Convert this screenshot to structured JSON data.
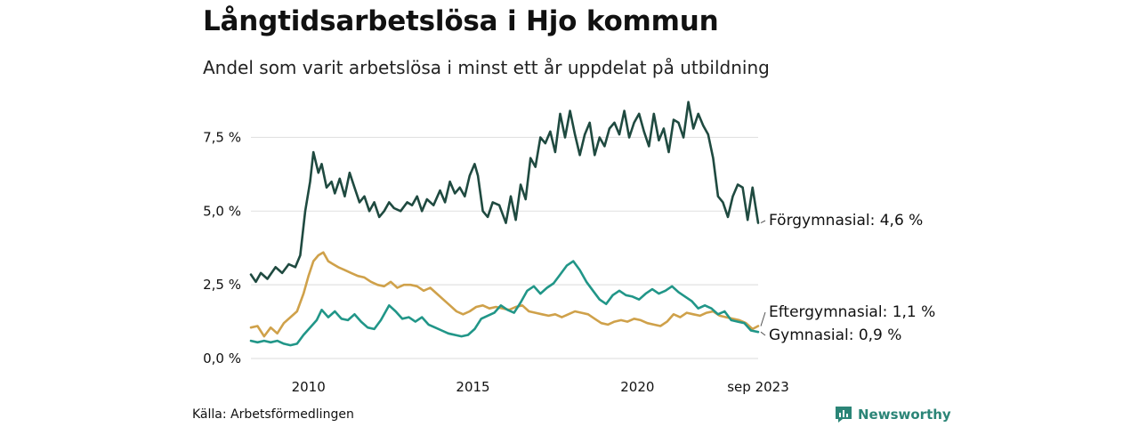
{
  "header": {
    "title": "Långtidsarbetslösa i Hjo kommun",
    "subtitle": "Andel som varit arbetslösa i minst ett år uppdelat på utbildning"
  },
  "footer": {
    "source": "Källa: Arbetsförmedlingen",
    "brand": "Newsworthy"
  },
  "colors": {
    "forgymnasial": "#1f4a40",
    "eftergymnasial": "#cfa14a",
    "gymnasial": "#219688",
    "grid": "#e2e2e2",
    "brand": "#2b8577"
  },
  "icons": {
    "brand": "bar-chart-icon"
  },
  "chart_data": {
    "type": "line",
    "title": "Långtidsarbetslösa i Hjo kommun",
    "subtitle": "Andel som varit arbetslösa i minst ett år uppdelat på utbildning",
    "xlabel": "",
    "ylabel": "",
    "xlim": [
      2008.25,
      2023.67
    ],
    "ylim": [
      0,
      8.6
    ],
    "y_ticks": [
      0,
      2.5,
      5,
      7.5
    ],
    "y_tick_labels": [
      "0,0 %",
      "2,5 %",
      "5,0 %",
      "7,5 %"
    ],
    "x_ticks": [
      2010,
      2015,
      2020,
      2023.67
    ],
    "x_tick_labels": [
      "2010",
      "2015",
      "2020",
      "sep 2023"
    ],
    "grid": true,
    "series": [
      {
        "name": "Förgymnasial",
        "end_label": "Förgymnasial: 4,6 %",
        "color": "#1f4a40",
        "points": [
          [
            2008.25,
            2.85
          ],
          [
            2008.4,
            2.6
          ],
          [
            2008.55,
            2.9
          ],
          [
            2008.75,
            2.7
          ],
          [
            2009.0,
            3.1
          ],
          [
            2009.2,
            2.9
          ],
          [
            2009.4,
            3.2
          ],
          [
            2009.6,
            3.1
          ],
          [
            2009.75,
            3.5
          ],
          [
            2009.9,
            5.0
          ],
          [
            2010.05,
            6.0
          ],
          [
            2010.15,
            7.0
          ],
          [
            2010.3,
            6.3
          ],
          [
            2010.4,
            6.6
          ],
          [
            2010.55,
            5.8
          ],
          [
            2010.7,
            6.0
          ],
          [
            2010.8,
            5.6
          ],
          [
            2010.95,
            6.1
          ],
          [
            2011.1,
            5.5
          ],
          [
            2011.25,
            6.3
          ],
          [
            2011.4,
            5.8
          ],
          [
            2011.55,
            5.3
          ],
          [
            2011.7,
            5.5
          ],
          [
            2011.85,
            5.0
          ],
          [
            2012.0,
            5.3
          ],
          [
            2012.15,
            4.8
          ],
          [
            2012.3,
            5.0
          ],
          [
            2012.45,
            5.3
          ],
          [
            2012.6,
            5.1
          ],
          [
            2012.8,
            5.0
          ],
          [
            2013.0,
            5.3
          ],
          [
            2013.15,
            5.2
          ],
          [
            2013.3,
            5.5
          ],
          [
            2013.45,
            5.0
          ],
          [
            2013.6,
            5.4
          ],
          [
            2013.8,
            5.2
          ],
          [
            2014.0,
            5.7
          ],
          [
            2014.15,
            5.3
          ],
          [
            2014.3,
            6.0
          ],
          [
            2014.45,
            5.6
          ],
          [
            2014.6,
            5.8
          ],
          [
            2014.75,
            5.5
          ],
          [
            2014.9,
            6.2
          ],
          [
            2015.05,
            6.6
          ],
          [
            2015.15,
            6.2
          ],
          [
            2015.3,
            5.0
          ],
          [
            2015.45,
            4.8
          ],
          [
            2015.6,
            5.3
          ],
          [
            2015.8,
            5.2
          ],
          [
            2016.0,
            4.6
          ],
          [
            2016.15,
            5.5
          ],
          [
            2016.3,
            4.7
          ],
          [
            2016.45,
            5.9
          ],
          [
            2016.6,
            5.4
          ],
          [
            2016.75,
            6.8
          ],
          [
            2016.9,
            6.5
          ],
          [
            2017.05,
            7.5
          ],
          [
            2017.2,
            7.3
          ],
          [
            2017.35,
            7.7
          ],
          [
            2017.5,
            7.0
          ],
          [
            2017.65,
            8.3
          ],
          [
            2017.8,
            7.5
          ],
          [
            2017.95,
            8.4
          ],
          [
            2018.1,
            7.6
          ],
          [
            2018.25,
            6.9
          ],
          [
            2018.4,
            7.6
          ],
          [
            2018.55,
            8.0
          ],
          [
            2018.7,
            6.9
          ],
          [
            2018.85,
            7.5
          ],
          [
            2019.0,
            7.2
          ],
          [
            2019.15,
            7.8
          ],
          [
            2019.3,
            8.0
          ],
          [
            2019.45,
            7.6
          ],
          [
            2019.6,
            8.4
          ],
          [
            2019.75,
            7.5
          ],
          [
            2019.9,
            8.0
          ],
          [
            2020.05,
            8.3
          ],
          [
            2020.2,
            7.7
          ],
          [
            2020.35,
            7.2
          ],
          [
            2020.5,
            8.3
          ],
          [
            2020.65,
            7.4
          ],
          [
            2020.8,
            7.8
          ],
          [
            2020.95,
            7.0
          ],
          [
            2021.1,
            8.1
          ],
          [
            2021.25,
            8.0
          ],
          [
            2021.4,
            7.5
          ],
          [
            2021.55,
            8.7
          ],
          [
            2021.7,
            7.8
          ],
          [
            2021.85,
            8.3
          ],
          [
            2022.0,
            7.9
          ],
          [
            2022.15,
            7.6
          ],
          [
            2022.3,
            6.8
          ],
          [
            2022.45,
            5.5
          ],
          [
            2022.6,
            5.3
          ],
          [
            2022.75,
            4.8
          ],
          [
            2022.9,
            5.5
          ],
          [
            2023.05,
            5.9
          ],
          [
            2023.2,
            5.8
          ],
          [
            2023.35,
            4.7
          ],
          [
            2023.5,
            5.8
          ],
          [
            2023.67,
            4.6
          ]
        ]
      },
      {
        "name": "Eftergymnasial",
        "end_label": "Eftergymnasial: 1,1 %",
        "color": "#cfa14a",
        "points": [
          [
            2008.25,
            1.05
          ],
          [
            2008.45,
            1.1
          ],
          [
            2008.65,
            0.75
          ],
          [
            2008.85,
            1.05
          ],
          [
            2009.05,
            0.85
          ],
          [
            2009.25,
            1.2
          ],
          [
            2009.45,
            1.4
          ],
          [
            2009.65,
            1.6
          ],
          [
            2009.85,
            2.2
          ],
          [
            2010.0,
            2.8
          ],
          [
            2010.15,
            3.3
          ],
          [
            2010.3,
            3.5
          ],
          [
            2010.45,
            3.6
          ],
          [
            2010.6,
            3.3
          ],
          [
            2010.75,
            3.2
          ],
          [
            2010.9,
            3.1
          ],
          [
            2011.1,
            3.0
          ],
          [
            2011.3,
            2.9
          ],
          [
            2011.5,
            2.8
          ],
          [
            2011.7,
            2.75
          ],
          [
            2011.9,
            2.6
          ],
          [
            2012.1,
            2.5
          ],
          [
            2012.3,
            2.45
          ],
          [
            2012.5,
            2.6
          ],
          [
            2012.7,
            2.4
          ],
          [
            2012.9,
            2.5
          ],
          [
            2013.1,
            2.5
          ],
          [
            2013.3,
            2.45
          ],
          [
            2013.5,
            2.3
          ],
          [
            2013.7,
            2.4
          ],
          [
            2013.9,
            2.2
          ],
          [
            2014.1,
            2.0
          ],
          [
            2014.3,
            1.8
          ],
          [
            2014.5,
            1.6
          ],
          [
            2014.7,
            1.5
          ],
          [
            2014.9,
            1.6
          ],
          [
            2015.1,
            1.75
          ],
          [
            2015.3,
            1.8
          ],
          [
            2015.5,
            1.7
          ],
          [
            2015.7,
            1.75
          ],
          [
            2015.9,
            1.7
          ],
          [
            2016.1,
            1.65
          ],
          [
            2016.3,
            1.75
          ],
          [
            2016.5,
            1.8
          ],
          [
            2016.7,
            1.6
          ],
          [
            2016.9,
            1.55
          ],
          [
            2017.1,
            1.5
          ],
          [
            2017.3,
            1.45
          ],
          [
            2017.5,
            1.5
          ],
          [
            2017.7,
            1.4
          ],
          [
            2017.9,
            1.5
          ],
          [
            2018.1,
            1.6
          ],
          [
            2018.3,
            1.55
          ],
          [
            2018.5,
            1.5
          ],
          [
            2018.7,
            1.35
          ],
          [
            2018.9,
            1.2
          ],
          [
            2019.1,
            1.15
          ],
          [
            2019.3,
            1.25
          ],
          [
            2019.5,
            1.3
          ],
          [
            2019.7,
            1.25
          ],
          [
            2019.9,
            1.35
          ],
          [
            2020.1,
            1.3
          ],
          [
            2020.3,
            1.2
          ],
          [
            2020.5,
            1.15
          ],
          [
            2020.7,
            1.1
          ],
          [
            2020.9,
            1.25
          ],
          [
            2021.1,
            1.5
          ],
          [
            2021.3,
            1.4
          ],
          [
            2021.5,
            1.55
          ],
          [
            2021.7,
            1.5
          ],
          [
            2021.9,
            1.45
          ],
          [
            2022.1,
            1.55
          ],
          [
            2022.3,
            1.6
          ],
          [
            2022.5,
            1.45
          ],
          [
            2022.7,
            1.4
          ],
          [
            2022.9,
            1.35
          ],
          [
            2023.1,
            1.3
          ],
          [
            2023.3,
            1.2
          ],
          [
            2023.5,
            1.0
          ],
          [
            2023.67,
            1.1
          ]
        ]
      },
      {
        "name": "Gymnasial",
        "end_label": "Gymnasial: 0,9 %",
        "color": "#219688",
        "points": [
          [
            2008.25,
            0.6
          ],
          [
            2008.45,
            0.55
          ],
          [
            2008.65,
            0.6
          ],
          [
            2008.85,
            0.55
          ],
          [
            2009.05,
            0.6
          ],
          [
            2009.25,
            0.5
          ],
          [
            2009.45,
            0.45
          ],
          [
            2009.65,
            0.5
          ],
          [
            2009.85,
            0.8
          ],
          [
            2010.05,
            1.05
          ],
          [
            2010.25,
            1.3
          ],
          [
            2010.4,
            1.65
          ],
          [
            2010.6,
            1.4
          ],
          [
            2010.8,
            1.6
          ],
          [
            2011.0,
            1.35
          ],
          [
            2011.2,
            1.3
          ],
          [
            2011.4,
            1.5
          ],
          [
            2011.6,
            1.25
          ],
          [
            2011.8,
            1.05
          ],
          [
            2012.0,
            1.0
          ],
          [
            2012.2,
            1.3
          ],
          [
            2012.45,
            1.8
          ],
          [
            2012.65,
            1.6
          ],
          [
            2012.85,
            1.35
          ],
          [
            2013.05,
            1.4
          ],
          [
            2013.25,
            1.25
          ],
          [
            2013.45,
            1.4
          ],
          [
            2013.65,
            1.15
          ],
          [
            2013.85,
            1.05
          ],
          [
            2014.05,
            0.95
          ],
          [
            2014.25,
            0.85
          ],
          [
            2014.45,
            0.8
          ],
          [
            2014.65,
            0.75
          ],
          [
            2014.85,
            0.8
          ],
          [
            2015.05,
            1.0
          ],
          [
            2015.25,
            1.35
          ],
          [
            2015.45,
            1.45
          ],
          [
            2015.65,
            1.55
          ],
          [
            2015.85,
            1.8
          ],
          [
            2016.05,
            1.65
          ],
          [
            2016.25,
            1.55
          ],
          [
            2016.45,
            1.9
          ],
          [
            2016.65,
            2.3
          ],
          [
            2016.85,
            2.45
          ],
          [
            2017.05,
            2.2
          ],
          [
            2017.25,
            2.4
          ],
          [
            2017.45,
            2.55
          ],
          [
            2017.65,
            2.85
          ],
          [
            2017.85,
            3.15
          ],
          [
            2018.05,
            3.3
          ],
          [
            2018.25,
            3.0
          ],
          [
            2018.45,
            2.6
          ],
          [
            2018.65,
            2.3
          ],
          [
            2018.85,
            2.0
          ],
          [
            2019.05,
            1.85
          ],
          [
            2019.25,
            2.15
          ],
          [
            2019.45,
            2.3
          ],
          [
            2019.65,
            2.15
          ],
          [
            2019.85,
            2.1
          ],
          [
            2020.05,
            2.0
          ],
          [
            2020.25,
            2.2
          ],
          [
            2020.45,
            2.35
          ],
          [
            2020.65,
            2.2
          ],
          [
            2020.85,
            2.3
          ],
          [
            2021.05,
            2.45
          ],
          [
            2021.25,
            2.25
          ],
          [
            2021.45,
            2.1
          ],
          [
            2021.65,
            1.95
          ],
          [
            2021.85,
            1.7
          ],
          [
            2022.05,
            1.8
          ],
          [
            2022.25,
            1.7
          ],
          [
            2022.45,
            1.5
          ],
          [
            2022.65,
            1.6
          ],
          [
            2022.85,
            1.3
          ],
          [
            2023.05,
            1.25
          ],
          [
            2023.25,
            1.2
          ],
          [
            2023.45,
            0.95
          ],
          [
            2023.67,
            0.9
          ]
        ]
      }
    ]
  }
}
